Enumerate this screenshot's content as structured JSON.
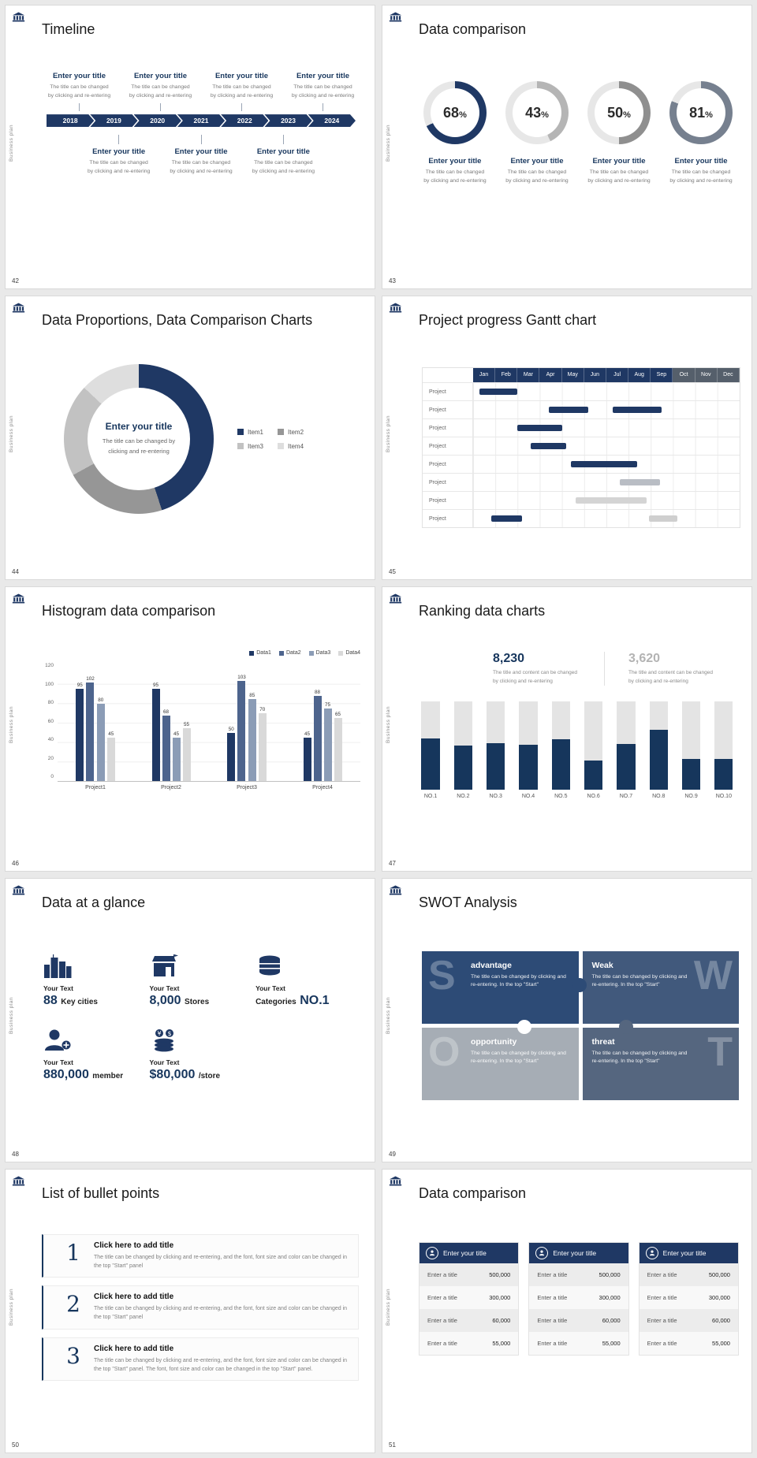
{
  "page": {
    "background": "#e9e9e9"
  },
  "common": {
    "vertical_label": "Business plan",
    "brand_color": "#1f3864"
  },
  "slides": {
    "s42": {
      "number": "42",
      "title": "Timeline",
      "entry_title": "Enter your title",
      "caption_line1": "The title can be changed",
      "caption_line2": "by clicking and re-entering",
      "years": [
        "2018",
        "2019",
        "2020",
        "2021",
        "2022",
        "2023",
        "2024"
      ]
    },
    "s43": {
      "number": "43",
      "title": "Data comparison",
      "entry_title": "Enter your title",
      "caption_line1": "The title can be changed",
      "caption_line2": "by clicking and re-entering"
    },
    "s44": {
      "number": "44",
      "title": "Data Proportions, Data Comparison Charts"
    },
    "s45": {
      "number": "45",
      "title": "Project progress Gantt chart"
    },
    "s46": {
      "number": "46",
      "title": "Histogram data comparison"
    },
    "s47": {
      "number": "47",
      "title": "Ranking data charts"
    },
    "s48": {
      "number": "48",
      "title": "Data at a glance",
      "items": [
        {
          "label": "Your Text",
          "value": "88",
          "suffix": "Key cities",
          "icon": "city-buildings-icon"
        },
        {
          "label": "Your Text",
          "value": "8,000",
          "suffix": "Stores",
          "icon": "store-icon"
        },
        {
          "label": "Your Text",
          "prefix": "Categories",
          "value": "NO.1",
          "icon": "database-icon"
        },
        {
          "label": "Your Text",
          "value": "880,000",
          "suffix": "member",
          "icon": "member-icon"
        },
        {
          "label": "Your Text",
          "value": "$80,000",
          "suffix": "/store",
          "icon": "coins-icon"
        }
      ]
    },
    "s49": {
      "number": "49",
      "title": "SWOT Analysis",
      "quads": [
        {
          "letter": "S",
          "title": "advantage",
          "caption": "The title can be changed by clicking and re-entering. In the top \"Start\"",
          "color": "#2d4b76"
        },
        {
          "letter": "W",
          "title": "Weak",
          "caption": "The title can be changed by clicking and re-entering. In the top \"Start\"",
          "color": "#41597c"
        },
        {
          "letter": "O",
          "title": "opportunity",
          "caption": "The title can be changed by clicking and re-entering. In the top \"Start\"",
          "color": "#a6adb5"
        },
        {
          "letter": "T",
          "title": "threat",
          "caption": "The title can be changed by clicking and re-entering. In the top \"Start\"",
          "color": "#55667f"
        }
      ]
    },
    "s50": {
      "number": "50",
      "title": "List of bullet points",
      "items": [
        {
          "num": "1",
          "title": "Click here to add title",
          "caption": "The title can be changed by clicking and re-entering, and the font, font size and color can be changed in the top \"Start\" panel"
        },
        {
          "num": "2",
          "title": "Click here to add title",
          "caption": "The title can be changed by clicking and re-entering, and the font, font size and color can be changed in the top \"Start\" panel"
        },
        {
          "num": "3",
          "title": "Click here to add title",
          "caption": "The title can be changed by clicking and re-entering, and the font, font size and color can be changed in the top \"Start\" panel. The font, font size and color can be changed in the top \"Start\" panel."
        }
      ]
    },
    "s51": {
      "number": "51",
      "title": "Data comparison",
      "card_title": "Enter your title",
      "row_label": "Enter a title",
      "row_values": [
        "500,000",
        "300,000",
        "60,000",
        "55,000"
      ]
    }
  },
  "chart_data": [
    {
      "id": "progress-rings",
      "slide": 43,
      "type": "pie",
      "unit": "%",
      "track_color": "#e7e7e7",
      "rings": [
        {
          "value": 68,
          "color": "#1f3864"
        },
        {
          "value": 43,
          "color": "#b5b5b5"
        },
        {
          "value": 50,
          "color": "#8f8f8f"
        },
        {
          "value": 81,
          "color": "#76808f"
        }
      ]
    },
    {
      "id": "donut",
      "slide": 44,
      "type": "pie",
      "labels": [
        "Item1",
        "Item2",
        "Item3",
        "Item4"
      ],
      "values": [
        45,
        22,
        20,
        13
      ],
      "colors": [
        "#1f3864",
        "#969696",
        "#c2c2c2",
        "#dedede"
      ],
      "center_title": "Enter your title",
      "center_caption": "The title can be changed by clicking and re-entering"
    },
    {
      "id": "gantt",
      "slide": 45,
      "type": "table",
      "months": [
        "Jan",
        "Feb",
        "Mar",
        "Apr",
        "May",
        "Jun",
        "Jul",
        "Aug",
        "Sep",
        "Oct",
        "Nov",
        "Dec"
      ],
      "row_label": "Project",
      "rows": [
        {
          "bars": [
            {
              "start": 0.3,
              "len": 1.7,
              "color": "#1f3864"
            }
          ]
        },
        {
          "bars": [
            {
              "start": 3.4,
              "len": 1.8,
              "color": "#1f3864"
            },
            {
              "start": 6.3,
              "len": 2.2,
              "color": "#1f3864"
            }
          ]
        },
        {
          "bars": [
            {
              "start": 2.0,
              "len": 2.0,
              "color": "#1f3864"
            }
          ]
        },
        {
          "bars": [
            {
              "start": 2.6,
              "len": 1.6,
              "color": "#1f3864"
            }
          ]
        },
        {
          "bars": [
            {
              "start": 4.4,
              "len": 3.0,
              "color": "#1f3864"
            }
          ]
        },
        {
          "bars": [
            {
              "start": 6.6,
              "len": 1.8,
              "color": "#b9bdc4"
            }
          ]
        },
        {
          "bars": [
            {
              "start": 4.6,
              "len": 3.2,
              "color": "#d4d4d4"
            }
          ]
        },
        {
          "bars": [
            {
              "start": 0.8,
              "len": 1.4,
              "color": "#1f3864"
            },
            {
              "start": 7.9,
              "len": 1.3,
              "color": "#cfcfcf"
            }
          ]
        }
      ]
    },
    {
      "id": "histogram",
      "slide": 46,
      "type": "bar",
      "categories": [
        "Project1",
        "Project2",
        "Project3",
        "Project4"
      ],
      "series": [
        {
          "name": "Data1",
          "color": "#1f3864",
          "values": [
            95,
            95,
            50,
            45
          ]
        },
        {
          "name": "Data2",
          "color": "#4d648d",
          "values": [
            102,
            68,
            103,
            88
          ]
        },
        {
          "name": "Data3",
          "color": "#8b9cb6",
          "values": [
            80,
            45,
            85,
            75
          ]
        },
        {
          "name": "Data4",
          "color": "#d9d9d9",
          "values": [
            45,
            55,
            70,
            65
          ]
        }
      ],
      "ylim": [
        0,
        120
      ],
      "yticks": [
        0,
        20,
        40,
        60,
        80,
        100,
        120
      ]
    },
    {
      "id": "ranking",
      "slide": 47,
      "type": "bar",
      "stacked": true,
      "stat_primary": "8,230",
      "stat_secondary": "3,620",
      "caption_line1": "The title and content can be changed",
      "caption_line2": "by clicking and re-entering",
      "categories": [
        "NO.1",
        "NO.2",
        "NO.3",
        "NO.4",
        "NO.5",
        "NO.6",
        "NO.7",
        "NO.8",
        "NO.9",
        "NO.10"
      ],
      "series": [
        {
          "name": "value",
          "color": "#16365c",
          "values": [
            58,
            50,
            53,
            51,
            57,
            33,
            52,
            68,
            35,
            35
          ]
        },
        {
          "name": "remainder",
          "color": "#e4e4e4",
          "values": [
            42,
            50,
            47,
            49,
            43,
            67,
            48,
            32,
            65,
            65
          ]
        }
      ]
    }
  ]
}
